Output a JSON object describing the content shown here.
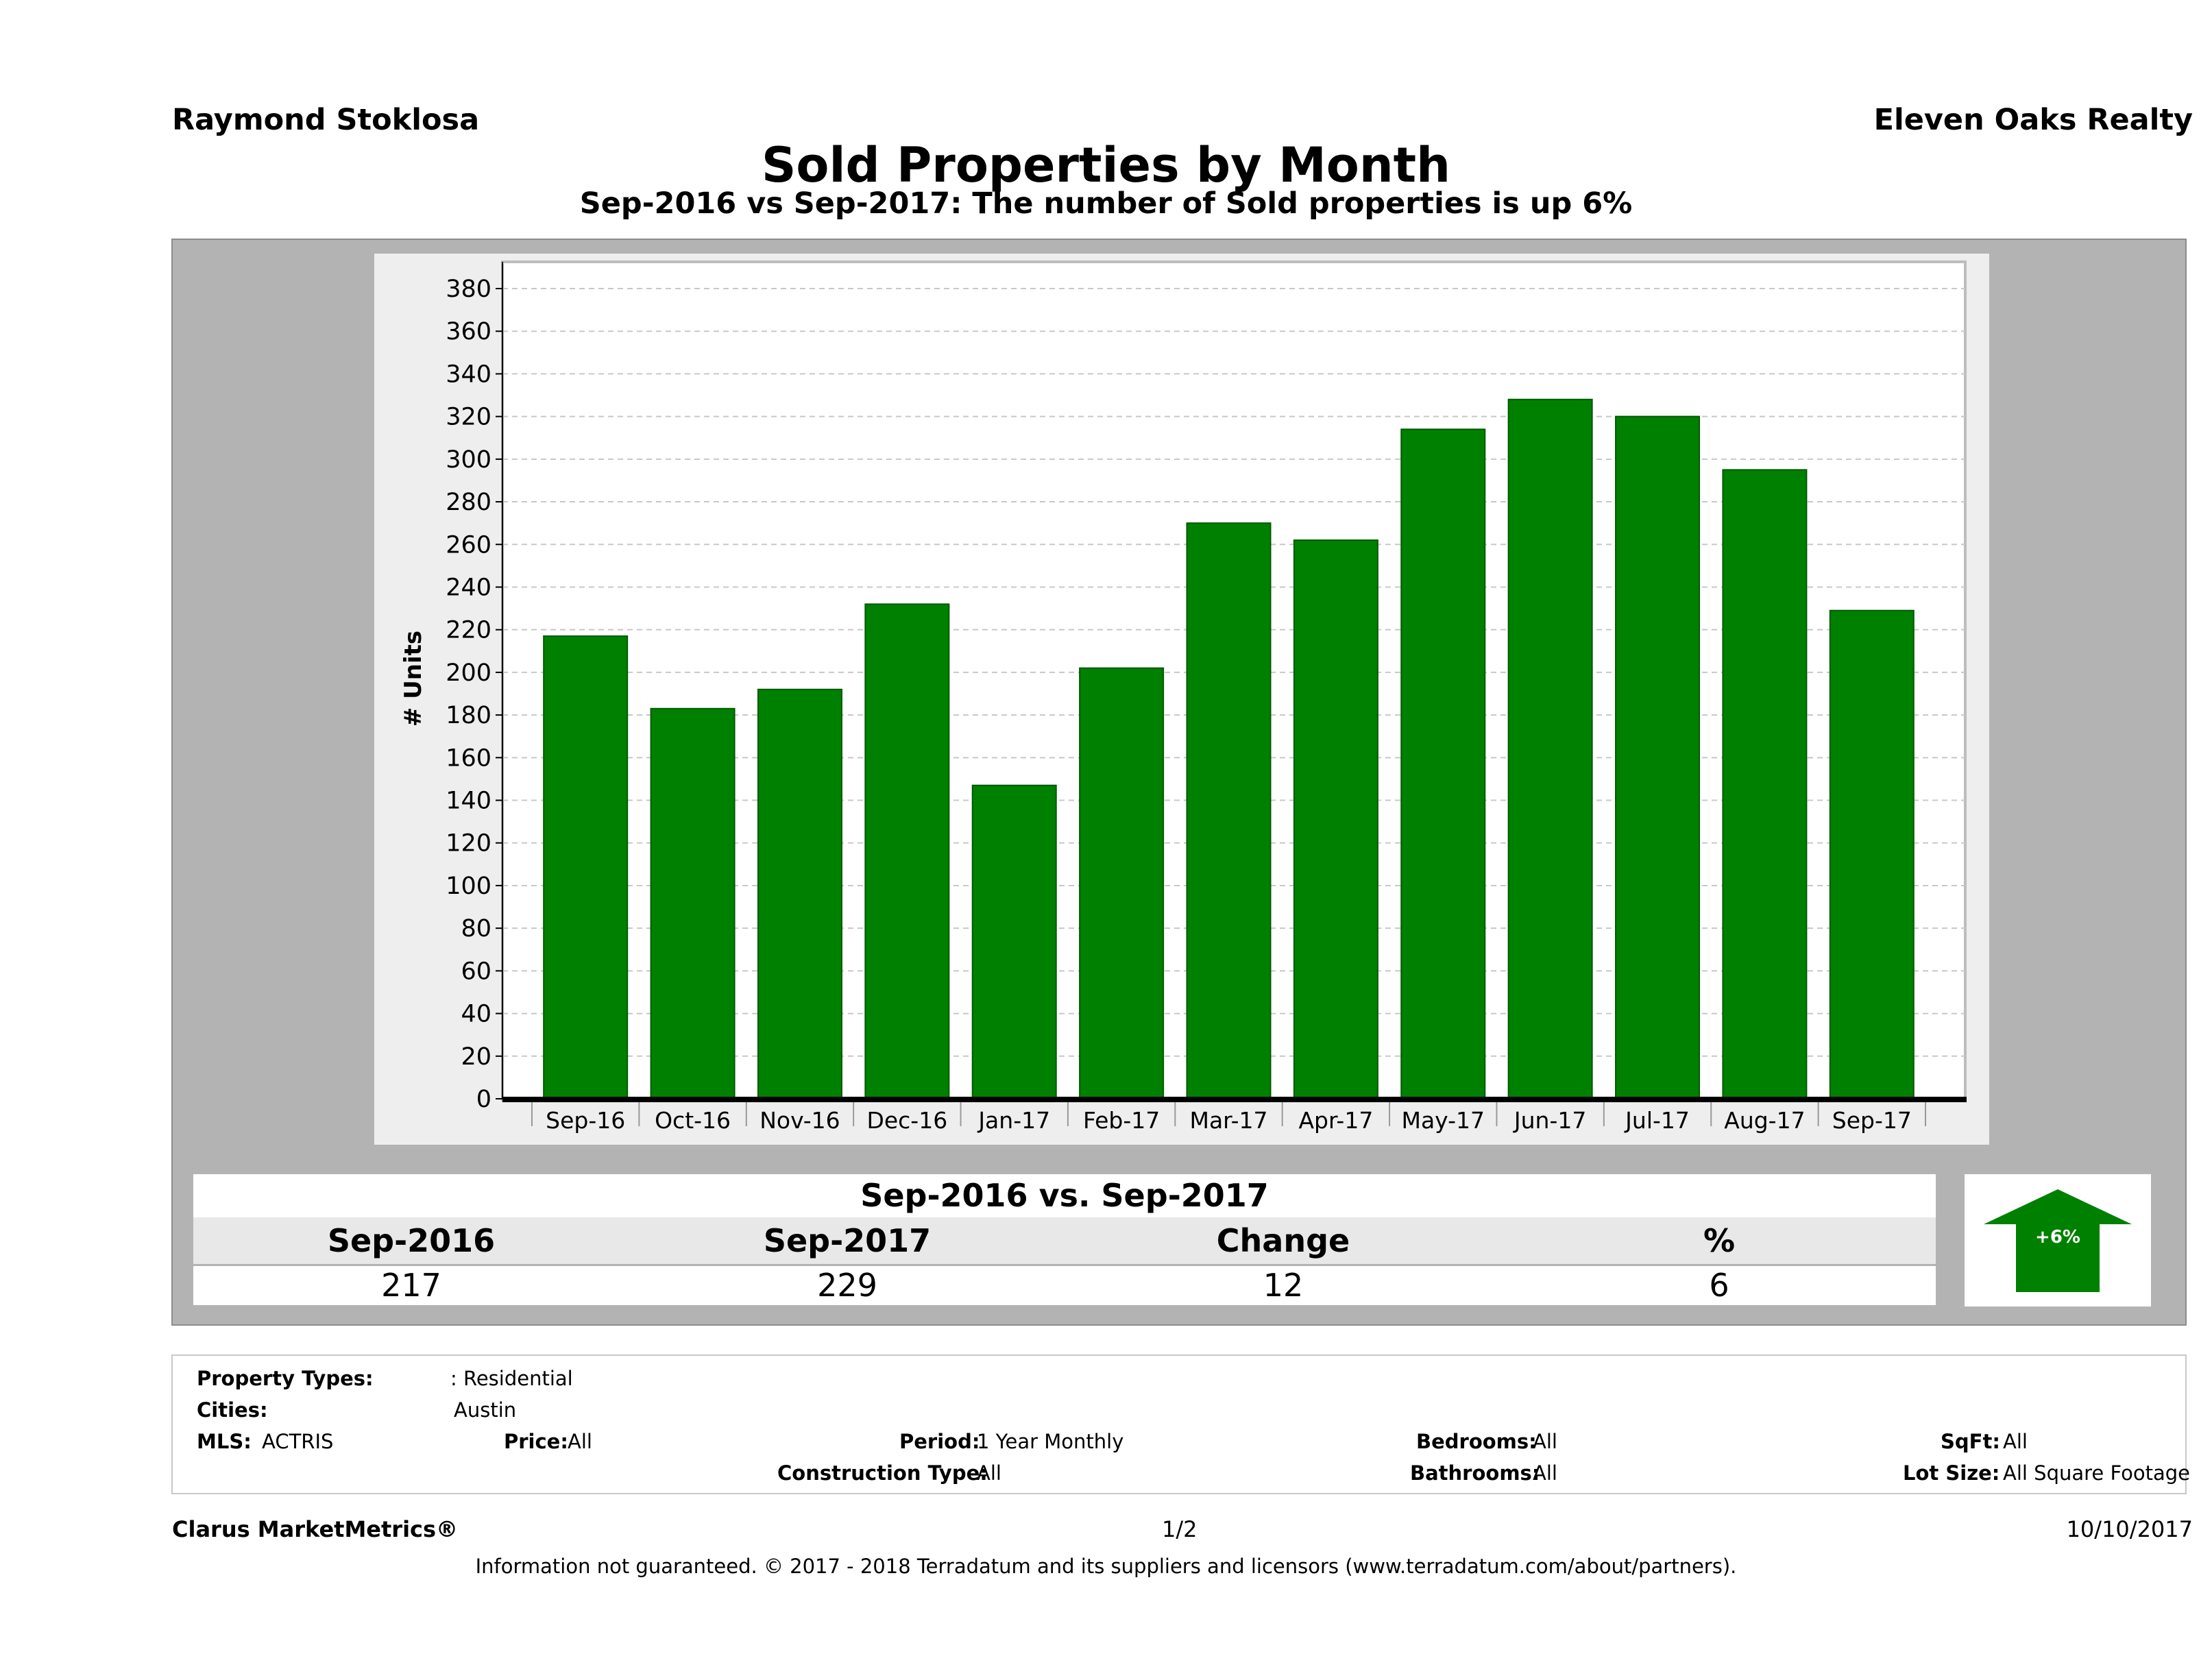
{
  "header": {
    "agent_name": "Raymond Stoklosa",
    "brokerage": "Eleven Oaks Realty",
    "title": "Sold Properties by Month",
    "subtitle": "Sep-2016 vs Sep-2017: The number of Sold  properties is up 6%"
  },
  "chart_data": {
    "type": "bar",
    "ylabel": "# Units",
    "xlabel": "",
    "ylim": [
      0,
      380
    ],
    "y_ticks": [
      0,
      20,
      40,
      60,
      80,
      100,
      120,
      140,
      160,
      180,
      200,
      220,
      240,
      260,
      280,
      300,
      320,
      340,
      360,
      380
    ],
    "categories": [
      "Sep-16",
      "Oct-16",
      "Nov-16",
      "Dec-16",
      "Jan-17",
      "Feb-17",
      "Mar-17",
      "Apr-17",
      "May-17",
      "Jun-17",
      "Jul-17",
      "Aug-17",
      "Sep-17"
    ],
    "values": [
      217,
      183,
      192,
      232,
      147,
      202,
      270,
      262,
      314,
      328,
      320,
      295,
      229
    ],
    "bar_color": "#008000",
    "grid": true,
    "legend": "none"
  },
  "summary": {
    "heading": "Sep-2016 vs. Sep-2017",
    "columns": [
      {
        "label": "Sep-2016",
        "value": "217"
      },
      {
        "label": "Sep-2017",
        "value": "229"
      },
      {
        "label": "Change",
        "value": "12"
      },
      {
        "label": "%",
        "value": "6"
      }
    ],
    "badge_text": "+6%",
    "badge_color": "#008000",
    "badge_icon": "up-arrow-icon"
  },
  "filters": {
    "property_types_label": "Property Types:",
    "property_types_value": ": Residential",
    "cities_label": "Cities:",
    "cities_value": "Austin",
    "mls_label": "MLS:",
    "mls_value": "ACTRIS",
    "price_label": "Price:",
    "price_value": "All",
    "period_label": "Period:",
    "period_value": "1 Year Monthly",
    "construction_label": "Construction Type:",
    "construction_value": "All",
    "bedrooms_label": "Bedrooms:",
    "bedrooms_value": "All",
    "bathrooms_label": "Bathrooms:",
    "bathrooms_value": "All",
    "sqft_label": "SqFt:",
    "sqft_value": "All",
    "lot_label": "Lot Size:",
    "lot_value": "All Square Footage"
  },
  "footer": {
    "brand": "Clarus MarketMetrics®",
    "page": "1/2",
    "date": "10/10/2017",
    "disclaimer": "Information not guaranteed. © 2017 - 2018 Terradatum and its suppliers and licensors (www.terradatum.com/about/partners)."
  }
}
